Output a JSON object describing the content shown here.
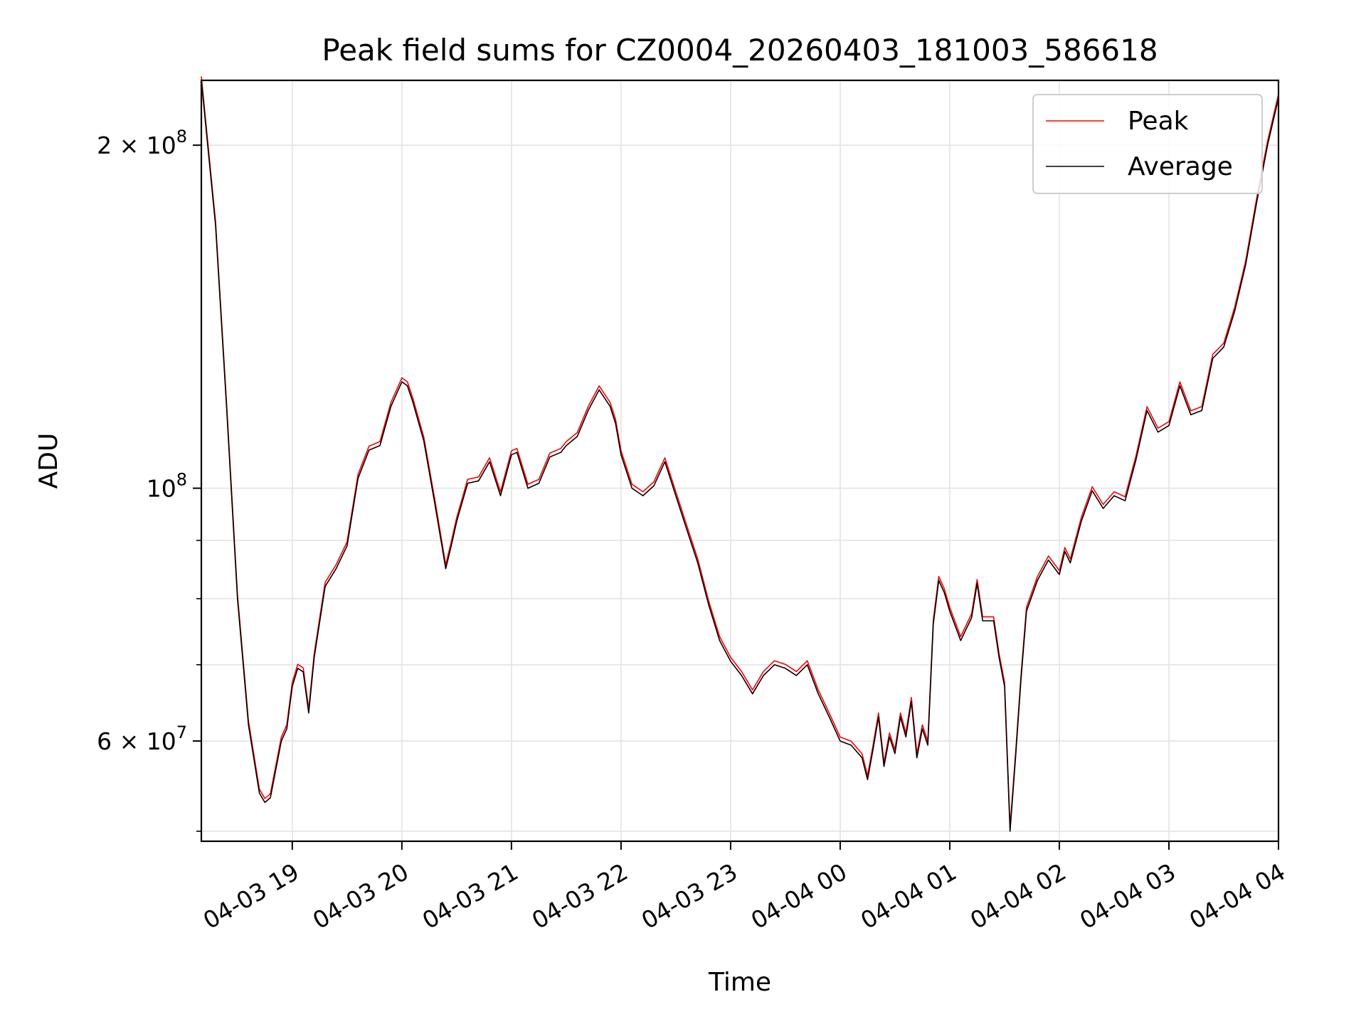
{
  "chart_data": {
    "type": "line",
    "title": "Peak field sums for CZ0004_20260403_181003_586618",
    "xlabel": "Time",
    "ylabel": "ADU",
    "yscale": "log",
    "ylim": [
      49000000,
      228000000
    ],
    "xlim_hours": [
      18.17,
      28.0
    ],
    "grid": true,
    "legend_position": "top-right",
    "x_ticks": [
      {
        "hour": 19,
        "label": "04-03 19"
      },
      {
        "hour": 20,
        "label": "04-03 20"
      },
      {
        "hour": 21,
        "label": "04-03 21"
      },
      {
        "hour": 22,
        "label": "04-03 22"
      },
      {
        "hour": 23,
        "label": "04-03 23"
      },
      {
        "hour": 24,
        "label": "04-04 00"
      },
      {
        "hour": 25,
        "label": "04-04 01"
      },
      {
        "hour": 26,
        "label": "04-04 02"
      },
      {
        "hour": 27,
        "label": "04-04 03"
      },
      {
        "hour": 28,
        "label": "04-04 04"
      }
    ],
    "y_ticks_major": [
      {
        "value": 100000000,
        "base": "10",
        "exp": "8"
      },
      {
        "value": 200000000,
        "base": "2 × 10",
        "exp": "8"
      },
      {
        "value": 60000000,
        "base": "6 × 10",
        "exp": "7"
      }
    ],
    "y_ticks_minor": [
      50000000,
      70000000,
      80000000,
      90000000
    ],
    "series": [
      {
        "name": "Peak",
        "color": "#ff0000",
        "offset_ratio": 1.008
      },
      {
        "name": "Average",
        "color": "#000000",
        "offset_ratio": 1.0
      }
    ],
    "x_hours": [
      18.17,
      18.3,
      18.4,
      18.5,
      18.6,
      18.7,
      18.75,
      18.8,
      18.9,
      18.95,
      19.0,
      19.05,
      19.1,
      19.15,
      19.2,
      19.3,
      19.4,
      19.5,
      19.6,
      19.7,
      19.8,
      19.9,
      20.0,
      20.05,
      20.1,
      20.2,
      20.3,
      20.4,
      20.45,
      20.5,
      20.6,
      20.7,
      20.8,
      20.9,
      21.0,
      21.05,
      21.15,
      21.25,
      21.35,
      21.45,
      21.5,
      21.6,
      21.7,
      21.8,
      21.9,
      21.95,
      22.0,
      22.1,
      22.2,
      22.3,
      22.4,
      22.5,
      22.6,
      22.7,
      22.8,
      22.9,
      23.0,
      23.1,
      23.2,
      23.3,
      23.4,
      23.5,
      23.6,
      23.7,
      23.8,
      23.9,
      24.0,
      24.1,
      24.2,
      24.25,
      24.3,
      24.35,
      24.4,
      24.45,
      24.5,
      24.55,
      24.6,
      24.65,
      24.7,
      24.75,
      24.8,
      24.85,
      24.9,
      24.95,
      25.0,
      25.1,
      25.2,
      25.25,
      25.3,
      25.4,
      25.45,
      25.5,
      25.55,
      25.6,
      25.65,
      25.7,
      25.8,
      25.9,
      26.0,
      26.05,
      26.1,
      26.2,
      26.3,
      26.4,
      26.5,
      26.6,
      26.7,
      26.8,
      26.9,
      27.0,
      27.1,
      27.2,
      27.3,
      27.4,
      27.5,
      27.6,
      27.7,
      27.8,
      27.9,
      28.0
    ],
    "y_average": [
      228000000,
      170000000,
      118000000,
      80000000,
      62000000,
      54000000,
      53000000,
      53500000,
      60000000,
      61500000,
      67000000,
      69500000,
      69000000,
      63500000,
      71000000,
      82000000,
      85000000,
      89000000,
      102000000,
      108000000,
      109000000,
      118000000,
      124000000,
      123000000,
      119000000,
      110000000,
      97000000,
      85000000,
      89000000,
      93500000,
      101000000,
      101500000,
      105500000,
      98500000,
      107000000,
      107500000,
      100000000,
      101000000,
      106500000,
      107500000,
      109000000,
      111000000,
      117000000,
      122000000,
      118000000,
      114000000,
      107000000,
      100000000,
      98500000,
      100500000,
      105500000,
      98500000,
      92000000,
      86000000,
      79000000,
      73500000,
      70500000,
      68500000,
      66000000,
      68500000,
      70000000,
      69500000,
      68500000,
      70000000,
      66000000,
      63000000,
      60000000,
      59500000,
      58000000,
      55500000,
      59000000,
      63000000,
      57000000,
      60500000,
      58500000,
      63000000,
      60500000,
      65000000,
      58000000,
      61500000,
      59500000,
      76000000,
      83000000,
      81000000,
      78000000,
      73500000,
      77000000,
      82500000,
      76500000,
      76500000,
      71000000,
      67000000,
      50000000,
      58000000,
      68000000,
      78000000,
      83000000,
      86500000,
      84000000,
      88000000,
      86000000,
      93500000,
      99500000,
      96000000,
      98500000,
      97500000,
      106000000,
      117000000,
      112000000,
      113500000,
      123000000,
      116000000,
      117000000,
      130000000,
      133000000,
      143000000,
      157000000,
      178000000,
      200000000,
      220000000
    ]
  }
}
